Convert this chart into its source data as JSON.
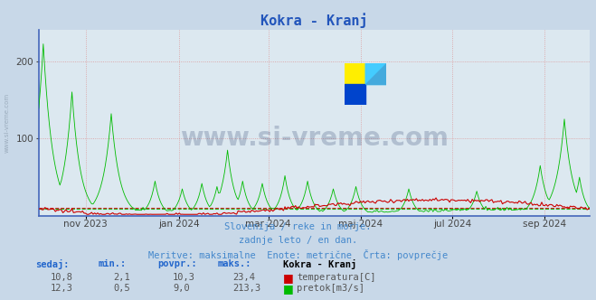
{
  "title": "Kokra - Kranj",
  "title_color": "#2255bb",
  "background_color": "#c8d8e8",
  "plot_background": "#dce8f0",
  "grid_color": "#dd9999",
  "temp_color": "#cc0000",
  "flow_color": "#00bb00",
  "temp_avg": 10.3,
  "flow_avg": 9.0,
  "ylim": [
    0,
    240
  ],
  "yticks": [
    100,
    200
  ],
  "x_tick_labels": [
    "nov 2023",
    "jan 2024",
    "mar 2024",
    "maj 2024",
    "jul 2024",
    "sep 2024"
  ],
  "x_tick_positions": [
    31,
    93,
    152,
    213,
    274,
    335
  ],
  "n_days": 366,
  "subtitle_color": "#4488cc",
  "subtitle_line1": "Slovenija / reke in morje.",
  "subtitle_line2": "zadnje leto / en dan.",
  "subtitle_line3": "Meritve: maksimalne  Enote: metrične  Črta: povprečje",
  "watermark": "www.si-vreme.com",
  "watermark_color": "#1a3060",
  "left_text": "www.si-vreme.com",
  "spine_color": "#4466bb",
  "headers": [
    "sedaj:",
    "min.:",
    "povpr.:",
    "maks.:"
  ],
  "header_color": "#2266cc",
  "temp_values": [
    "10,8",
    "2,1",
    "10,3",
    "23,4"
  ],
  "flow_values": [
    "12,3",
    "0,5",
    "9,0",
    "213,3"
  ],
  "series_label": "Kokra - Kranj",
  "temp_label": "temperatura[C]",
  "flow_label": "pretok[m3/s]"
}
